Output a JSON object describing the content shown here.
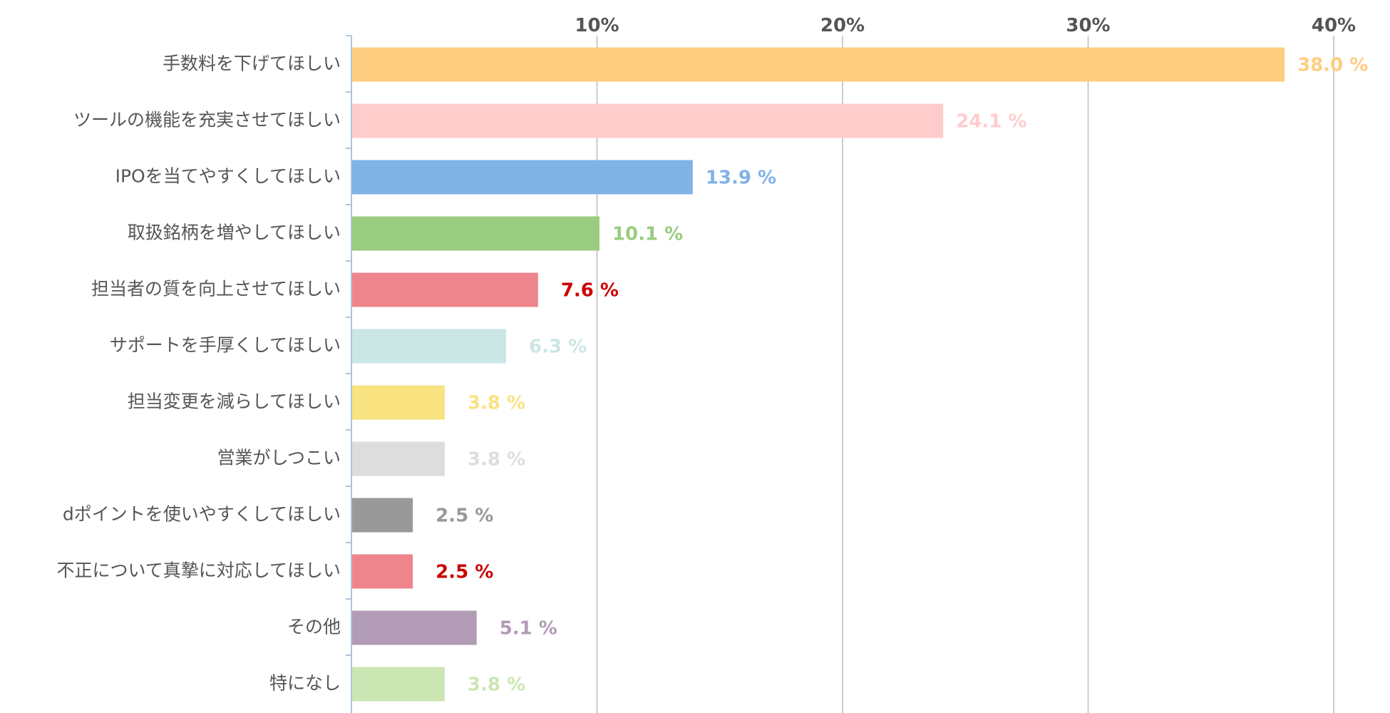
{
  "chart_data": {
    "type": "bar",
    "orientation": "horizontal",
    "categories": [
      "手数料を下げてほしい",
      "ツールの機能を充実させてほしい",
      "IPOを当てやすくしてほしい",
      "取扱銘柄を増やしてほしい",
      "担当者の質を向上させてほしい",
      "サポートを手厚くしてほしい",
      "担当変更を減らしてほしい",
      "営業がしつこい",
      "dポイントを使いやすくしてほしい",
      "不正について真摯に対応してほしい",
      "その他",
      "特になし"
    ],
    "values": [
      38.0,
      24.1,
      13.9,
      10.1,
      7.6,
      6.3,
      3.8,
      3.8,
      2.5,
      2.5,
      5.1,
      3.8
    ],
    "value_labels": [
      "38.0 %",
      "24.1 %",
      "13.9 %",
      "10.1 %",
      "7.6 %",
      "6.3 %",
      "3.8 %",
      "3.8 %",
      "2.5 %",
      "2.5 %",
      "5.1 %",
      "3.8 %"
    ],
    "bar_colors": [
      "#FFCD80",
      "#FFCCCC",
      "#80B3E6",
      "#99CC7F",
      "#EE858C",
      "#CCE6E6",
      "#F9E280",
      "#DDDDDD",
      "#999999",
      "#EE858C",
      "#B29BB5",
      "#CCE6B3"
    ],
    "label_colors": [
      "#FFCD80",
      "#FFCCCC",
      "#80B3E6",
      "#99CC7F",
      "#CC0000",
      "#CCE6E6",
      "#F9E280",
      "#DDDDDD",
      "#999999",
      "#CC0000",
      "#B29BB5",
      "#CCE6B3"
    ],
    "x_ticks": [
      10,
      20,
      30,
      40
    ],
    "x_tick_labels": [
      "10%",
      "20%",
      "30%",
      "40%"
    ],
    "xlim": [
      0,
      40
    ],
    "grid": true,
    "axis_position": "top",
    "title": "",
    "xlabel": "",
    "ylabel": "",
    "colors": {
      "grid": "#BBBBBB",
      "axis": "#AFC4DC",
      "text": "#555555"
    }
  }
}
